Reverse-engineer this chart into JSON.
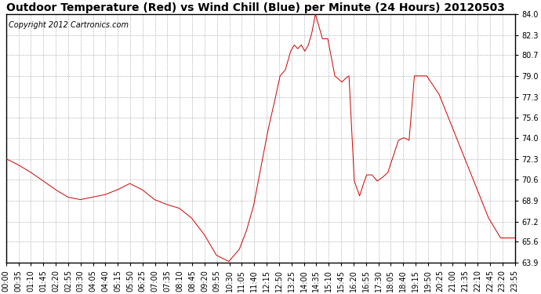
{
  "title": "Outdoor Temperature (Red) vs Wind Chill (Blue) per Minute (24 Hours) 20120503",
  "copyright_text": "Copyright 2012 Cartronics.com",
  "ylabel_right_ticks": [
    63.9,
    65.6,
    67.2,
    68.9,
    70.6,
    72.3,
    74.0,
    75.6,
    77.3,
    79.0,
    80.7,
    82.3,
    84.0
  ],
  "ylim": [
    63.9,
    84.0
  ],
  "x_tick_labels": [
    "00:00",
    "00:35",
    "01:10",
    "01:45",
    "02:20",
    "02:55",
    "03:30",
    "04:05",
    "04:40",
    "05:15",
    "05:50",
    "06:25",
    "07:00",
    "07:35",
    "08:10",
    "08:45",
    "09:20",
    "09:55",
    "10:30",
    "11:05",
    "11:40",
    "12:15",
    "12:50",
    "13:25",
    "14:00",
    "14:35",
    "15:10",
    "15:45",
    "16:20",
    "16:55",
    "17:30",
    "18:05",
    "18:40",
    "19:15",
    "19:50",
    "20:25",
    "21:00",
    "21:35",
    "22:10",
    "22:45",
    "23:20",
    "23:55"
  ],
  "background_color": "#ffffff",
  "grid_color": "#aaaaaa",
  "line_color_red": "#cc0000",
  "title_fontsize": 10,
  "copyright_fontsize": 7,
  "tick_fontsize": 7,
  "key_times": [
    0,
    35,
    70,
    105,
    140,
    175,
    210,
    245,
    280,
    315,
    350,
    385,
    420,
    455,
    490,
    525,
    560,
    595,
    630,
    660,
    680,
    700,
    720,
    740,
    760,
    775,
    790,
    805,
    815,
    825,
    835,
    845,
    855,
    865,
    875,
    885,
    895,
    910,
    930,
    950,
    960,
    970,
    985,
    1000,
    1010,
    1020,
    1035,
    1050,
    1065,
    1080,
    1095,
    1110,
    1125,
    1140,
    1155,
    1190,
    1225,
    1260,
    1295,
    1330,
    1365,
    1399
  ],
  "key_vals": [
    72.3,
    71.8,
    71.2,
    70.5,
    69.8,
    69.2,
    69.0,
    69.2,
    69.4,
    69.8,
    70.3,
    69.8,
    69.0,
    68.6,
    68.3,
    67.5,
    66.2,
    64.5,
    64.0,
    65.0,
    66.5,
    68.5,
    71.5,
    74.5,
    77.0,
    79.0,
    79.5,
    81.0,
    81.5,
    81.2,
    81.5,
    81.0,
    81.5,
    82.5,
    84.0,
    83.0,
    82.0,
    82.0,
    79.0,
    78.5,
    78.8,
    79.0,
    70.5,
    69.3,
    70.2,
    71.0,
    71.0,
    70.5,
    70.8,
    71.2,
    72.5,
    73.8,
    74.0,
    73.8,
    79.0,
    79.0,
    77.5,
    75.0,
    72.5,
    70.0,
    67.5,
    65.9
  ]
}
